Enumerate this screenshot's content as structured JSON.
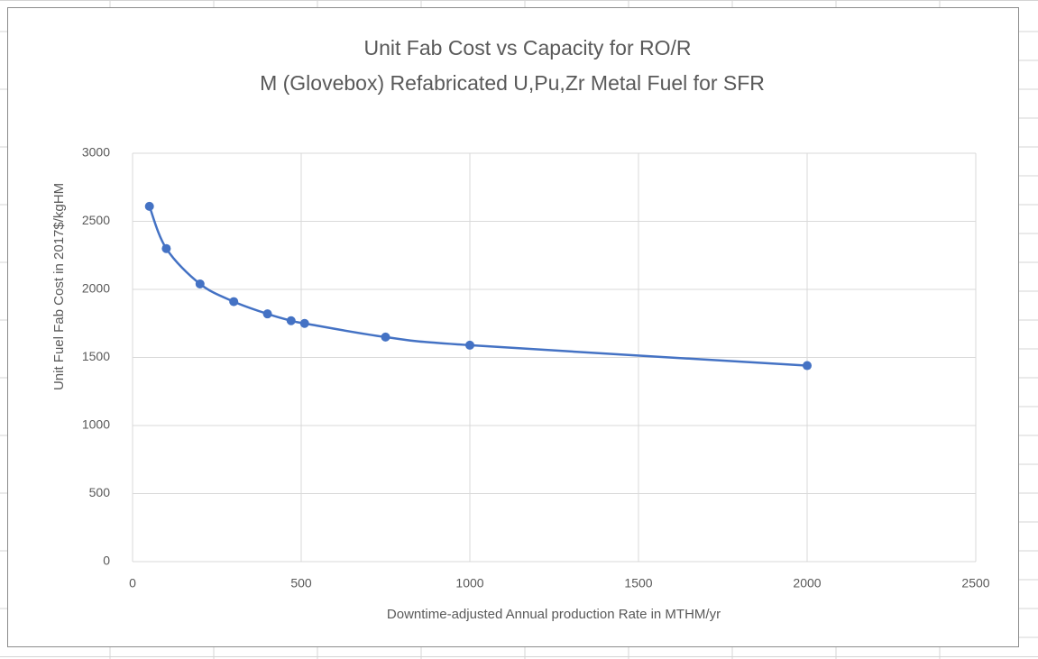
{
  "chart_data": {
    "type": "scatter",
    "title": [
      "Unit Fab Cost vs Capacity for RO/R",
      "M (Glovebox) Refabricated U,Pu,Zr Metal Fuel for SFR"
    ],
    "x_label": "Downtime-adjusted Annual production Rate in MTHM/yr",
    "y_label": "Unit Fuel Fab Cost in 2017$/kgHM",
    "x": [
      50,
      100,
      200,
      300,
      400,
      470,
      510,
      750,
      1000,
      2000
    ],
    "series": [
      {
        "color": "#4472c4",
        "values": [
          2610,
          2300,
          2040,
          1910,
          1820,
          1770,
          1750,
          1650,
          1590,
          1440
        ]
      }
    ],
    "xlim": [
      0,
      2500
    ],
    "xticks": [
      0,
      500,
      1000,
      1500,
      2000,
      2500
    ],
    "ylim": [
      0,
      3000
    ],
    "yticks": [
      0,
      500,
      1000,
      1500,
      2000,
      2500,
      3000
    ],
    "grid": true,
    "smooth": true
  }
}
